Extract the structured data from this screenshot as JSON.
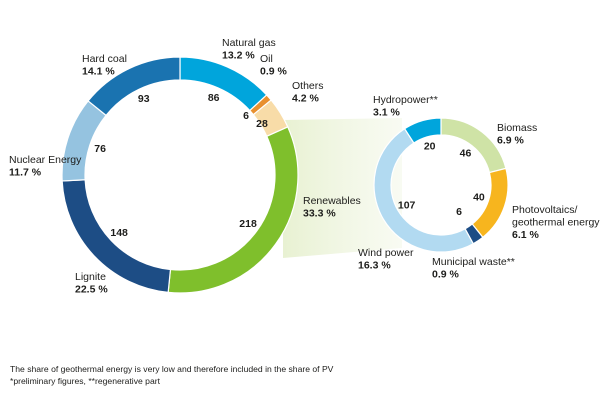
{
  "chart_data": [
    {
      "type": "pie",
      "donut": true,
      "unit_values": "",
      "slices": [
        {
          "name": "Natural gas",
          "value": 86,
          "percent": "13.2 %",
          "color": "#00a5dc"
        },
        {
          "name": "Oil",
          "value": 6,
          "percent": "0.9 %",
          "color": "#e8902f"
        },
        {
          "name": "Others",
          "value": 28,
          "percent": "4.2 %",
          "color": "#f8dca8"
        },
        {
          "name": "Renewables",
          "value": 218,
          "percent": "33.3 %",
          "color": "#7fbf2c"
        },
        {
          "name": "Lignite",
          "value": 148,
          "percent": "22.5 %",
          "color": "#1d4d85"
        },
        {
          "name": "Nuclear Energy",
          "value": 76,
          "percent": "11.7 %",
          "color": "#95c3e0"
        },
        {
          "name": "Hard coal",
          "value": 93,
          "percent": "14.1 %",
          "color": "#1a73b0"
        }
      ]
    },
    {
      "type": "pie",
      "donut": true,
      "breakdown_of": "Renewables",
      "slices": [
        {
          "name": "Biomass",
          "value": 46,
          "percent": "6.9 %",
          "color": "#cfe3a6"
        },
        {
          "name": "Photovoltaics/\ngeothermal energy",
          "value": 40,
          "percent": "6.1 %",
          "color": "#f7b51e"
        },
        {
          "name": "Municipal waste**",
          "value": 6,
          "percent": "0.9 %",
          "color": "#1d4d85"
        },
        {
          "name": "Wind power",
          "value": 107,
          "percent": "16.3 %",
          "color": "#b2daf1"
        },
        {
          "name": "Hydropower**",
          "value": 20,
          "percent": "3.1 %",
          "color": "#00a5dc"
        }
      ]
    }
  ],
  "footnotes": {
    "line1": "The share of geothermal energy is very low and therefore included in the share of PV",
    "line2": "*preliminary figures, **regenerative part"
  },
  "colors": {
    "connector": "#e6f0cf"
  }
}
